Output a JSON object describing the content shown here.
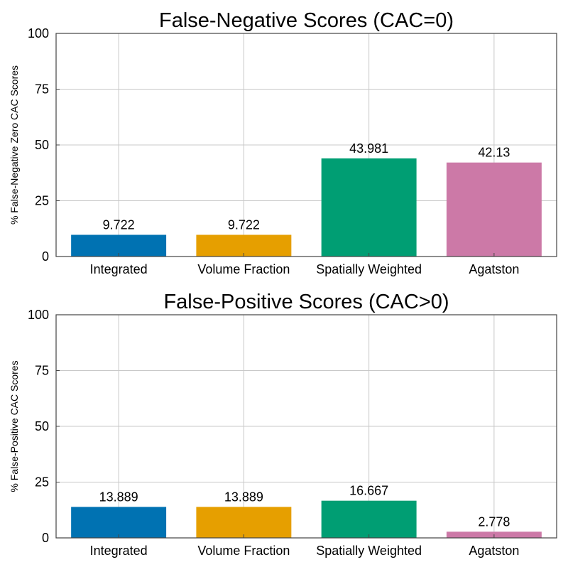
{
  "chart_data": [
    {
      "type": "bar",
      "title": "False-Negative Scores (CAC=0)",
      "xlabel": "",
      "ylabel": "% False-Negative Zero CAC Scores",
      "categories": [
        "Integrated",
        "Volume Fraction",
        "Spatially Weighted",
        "Agatston"
      ],
      "values": [
        9.722,
        9.722,
        43.981,
        42.13
      ],
      "value_labels": [
        "9.722",
        "9.722",
        "43.981",
        "42.13"
      ],
      "colors": [
        "#0072b2",
        "#e69f00",
        "#009e73",
        "#cc79a7"
      ],
      "ylim": [
        0,
        100
      ],
      "yticks": [
        0,
        25,
        50,
        75,
        100
      ],
      "grid": true
    },
    {
      "type": "bar",
      "title": "False-Positive Scores (CAC>0)",
      "xlabel": "",
      "ylabel": "% False-Positive CAC Scores",
      "categories": [
        "Integrated",
        "Volume Fraction",
        "Spatially Weighted",
        "Agatston"
      ],
      "values": [
        13.889,
        13.889,
        16.667,
        2.778
      ],
      "value_labels": [
        "13.889",
        "13.889",
        "16.667",
        "2.778"
      ],
      "colors": [
        "#0072b2",
        "#e69f00",
        "#009e73",
        "#cc79a7"
      ],
      "ylim": [
        0,
        100
      ],
      "yticks": [
        0,
        25,
        50,
        75,
        100
      ],
      "grid": true
    }
  ]
}
